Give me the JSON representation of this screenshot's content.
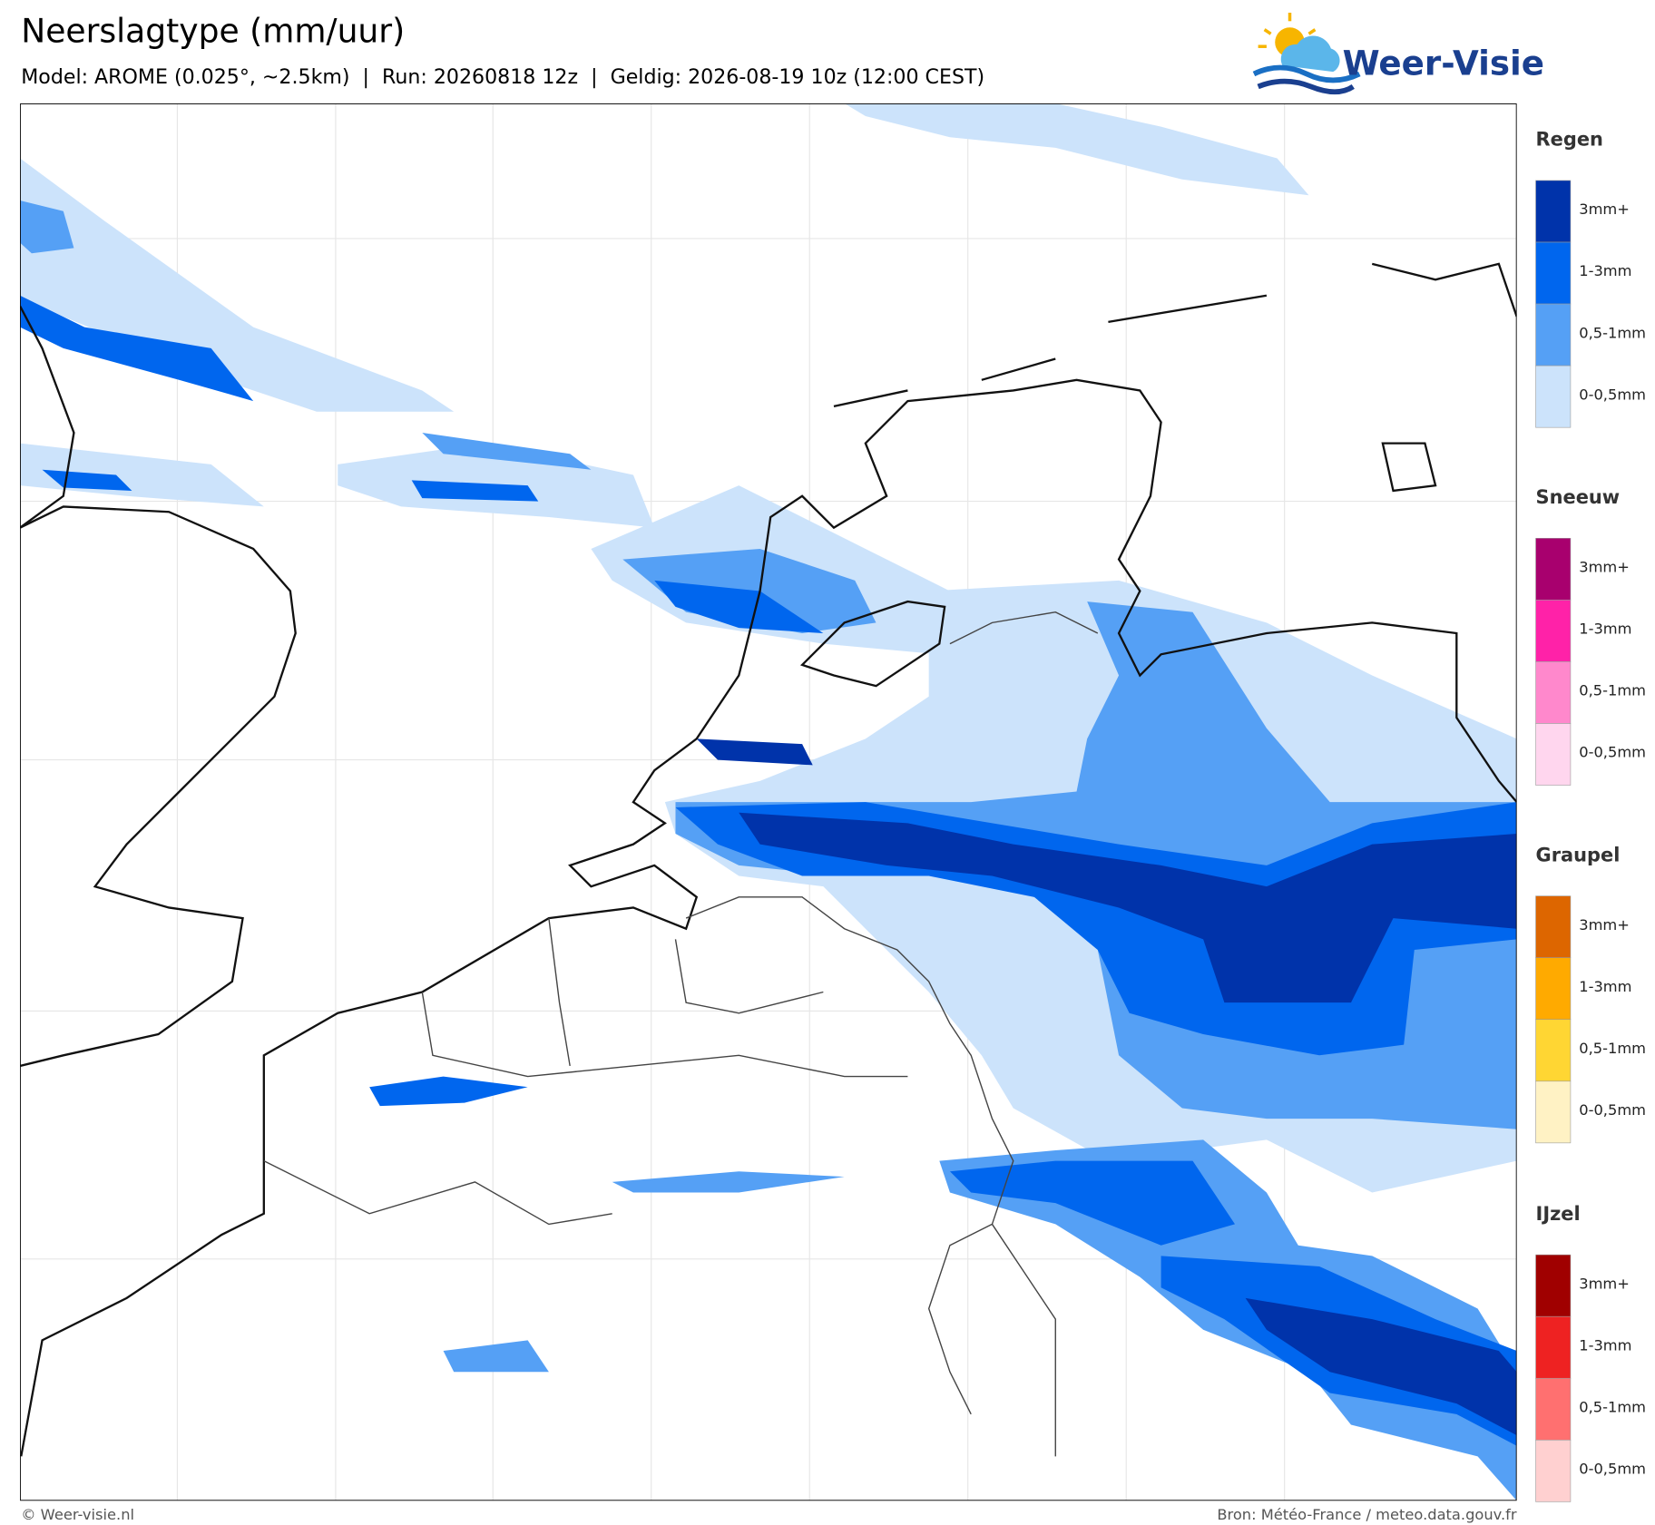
{
  "header": {
    "title": "Neerslagtype (mm/uur)",
    "subtitle": "Model: AROME (0.025°, ~2.5km)  |  Run: 20260818 12z  |  Geldig: 2026-08-19 10z (12:00 CEST)"
  },
  "logo": {
    "text": "Weer-Visie"
  },
  "legend": {
    "groups": [
      {
        "title": "Regen",
        "items": [
          {
            "label": "3mm+",
            "color": "#0033aa"
          },
          {
            "label": "1-3mm",
            "color": "#0066ee"
          },
          {
            "label": "0,5-1mm",
            "color": "#55a0f5"
          },
          {
            "label": "0-0,5mm",
            "color": "#cce3fb"
          }
        ]
      },
      {
        "title": "Sneeuw",
        "items": [
          {
            "label": "3mm+",
            "color": "#a8006e"
          },
          {
            "label": "1-3mm",
            "color": "#ff22a8"
          },
          {
            "label": "0,5-1mm",
            "color": "#ff88cc"
          },
          {
            "label": "0-0,5mm",
            "color": "#ffd6ee"
          }
        ]
      },
      {
        "title": "Graupel",
        "items": [
          {
            "label": "3mm+",
            "color": "#dd6600"
          },
          {
            "label": "1-3mm",
            "color": "#ffaa00"
          },
          {
            "label": "0,5-1mm",
            "color": "#ffd633"
          },
          {
            "label": "0-0,5mm",
            "color": "#fff2c4"
          }
        ]
      },
      {
        "title": "IJzel",
        "items": [
          {
            "label": "3mm+",
            "color": "#a00000"
          },
          {
            "label": "1-3mm",
            "color": "#ee2222"
          },
          {
            "label": "0,5-1mm",
            "color": "#ff7070"
          },
          {
            "label": "0-0,5mm",
            "color": "#ffd0d0"
          }
        ]
      }
    ]
  },
  "footer": {
    "left": "© Weer-visie.nl",
    "right": "Bron: Météo-France / meteo.data.gouv.fr"
  }
}
